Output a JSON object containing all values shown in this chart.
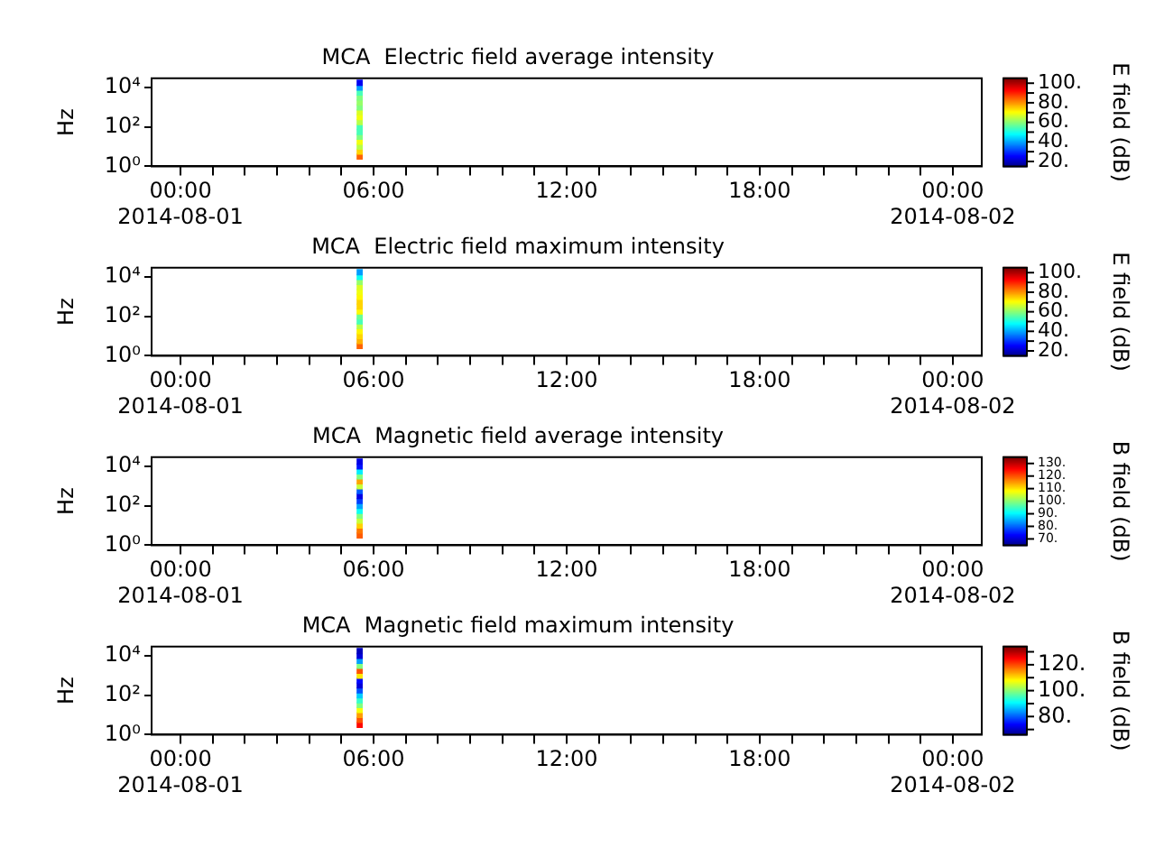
{
  "chart_data": [
    {
      "type": "scatter",
      "title": "MCA  Electric field average intensity",
      "ylabel": "Hz",
      "clabel": "E field (dB)",
      "marker": "square",
      "log": "y",
      "x": [
        "2014-08-01T05:34",
        "2014-08-01T05:34",
        "2014-08-01T05:34",
        "2014-08-01T05:34",
        "2014-08-01T05:34",
        "2014-08-01T05:34",
        "2014-08-01T05:34",
        "2014-08-01T05:34",
        "2014-08-01T05:34",
        "2014-08-01T05:34",
        "2014-08-01T05:34",
        "2014-08-01T05:34",
        "2014-08-01T05:34",
        "2014-08-01T05:34",
        "2014-08-01T05:34",
        "2014-08-01T05:34"
      ],
      "values": [
        3.16,
        5.62,
        10,
        17.8,
        31.6,
        56.2,
        100,
        178,
        316,
        562,
        1000,
        1780,
        3160,
        5620,
        10000,
        17800
      ],
      "cvalues": [
        85,
        75,
        65,
        70,
        60,
        55,
        55,
        65,
        70,
        68,
        60,
        62,
        60,
        55,
        40,
        25
      ],
      "clim": [
        15,
        105
      ],
      "cticks": [
        {
          "value": 20,
          "label": "20."
        },
        {
          "value": 30,
          "label": null
        },
        {
          "value": 40,
          "label": "40."
        },
        {
          "value": 50,
          "label": null
        },
        {
          "value": 60,
          "label": "60."
        },
        {
          "value": 70,
          "label": null
        },
        {
          "value": 80,
          "label": "80."
        },
        {
          "value": 90,
          "label": null
        },
        {
          "value": 100,
          "label": "100."
        }
      ],
      "xlim": [
        "2014-07-31T23:06",
        "2014-08-02T00:54"
      ],
      "xticks": [
        {
          "value": "2014-08-01T00:00",
          "label": "00:00\n2014-08-01"
        },
        {
          "value": "2014-08-01T01:00",
          "label": null
        },
        {
          "value": "2014-08-01T02:00",
          "label": null
        },
        {
          "value": "2014-08-01T03:00",
          "label": null
        },
        {
          "value": "2014-08-01T04:00",
          "label": null
        },
        {
          "value": "2014-08-01T05:00",
          "label": null
        },
        {
          "value": "2014-08-01T06:00",
          "label": "06:00"
        },
        {
          "value": "2014-08-01T07:00",
          "label": null
        },
        {
          "value": "2014-08-01T08:00",
          "label": null
        },
        {
          "value": "2014-08-01T09:00",
          "label": null
        },
        {
          "value": "2014-08-01T10:00",
          "label": null
        },
        {
          "value": "2014-08-01T11:00",
          "label": null
        },
        {
          "value": "2014-08-01T12:00",
          "label": "12:00"
        },
        {
          "value": "2014-08-01T13:00",
          "label": null
        },
        {
          "value": "2014-08-01T14:00",
          "label": null
        },
        {
          "value": "2014-08-01T15:00",
          "label": null
        },
        {
          "value": "2014-08-01T16:00",
          "label": null
        },
        {
          "value": "2014-08-01T17:00",
          "label": null
        },
        {
          "value": "2014-08-01T18:00",
          "label": "18:00"
        },
        {
          "value": "2014-08-01T19:00",
          "label": null
        },
        {
          "value": "2014-08-01T20:00",
          "label": null
        },
        {
          "value": "2014-08-01T21:00",
          "label": null
        },
        {
          "value": "2014-08-01T22:00",
          "label": null
        },
        {
          "value": "2014-08-01T23:00",
          "label": null
        },
        {
          "value": "2014-08-02T00:00",
          "label": "00:00\n2014-08-02"
        }
      ],
      "ylim": [
        1,
        30000
      ],
      "yticks": [
        {
          "value": 1,
          "label": "10⁰"
        },
        {
          "value": 100,
          "label": "10²"
        },
        {
          "value": 10000,
          "label": "10⁴"
        }
      ]
    },
    {
      "type": "scatter",
      "title": "MCA  Electric field maximum intensity",
      "ylabel": "Hz",
      "clabel": "E field (dB)",
      "marker": "square",
      "log": "y",
      "x": [
        "2014-08-01T05:34",
        "2014-08-01T05:34",
        "2014-08-01T05:34",
        "2014-08-01T05:34",
        "2014-08-01T05:34",
        "2014-08-01T05:34",
        "2014-08-01T05:34",
        "2014-08-01T05:34",
        "2014-08-01T05:34",
        "2014-08-01T05:34",
        "2014-08-01T05:34",
        "2014-08-01T05:34",
        "2014-08-01T05:34",
        "2014-08-01T05:34",
        "2014-08-01T05:34",
        "2014-08-01T05:34"
      ],
      "values": [
        3.16,
        5.62,
        10,
        17.8,
        31.6,
        56.2,
        100,
        178,
        316,
        562,
        1000,
        1780,
        3160,
        5620,
        10000,
        17800
      ],
      "cvalues": [
        85,
        78,
        75,
        72,
        65,
        55,
        58,
        72,
        75,
        75,
        72,
        70,
        68,
        62,
        50,
        40
      ],
      "clim": [
        15,
        105
      ],
      "cticks": [
        {
          "value": 20,
          "label": "20."
        },
        {
          "value": 30,
          "label": null
        },
        {
          "value": 40,
          "label": "40."
        },
        {
          "value": 50,
          "label": null
        },
        {
          "value": 60,
          "label": "60."
        },
        {
          "value": 70,
          "label": null
        },
        {
          "value": 80,
          "label": "80."
        },
        {
          "value": 90,
          "label": null
        },
        {
          "value": 100,
          "label": "100."
        }
      ],
      "xlim": [
        "2014-07-31T23:06",
        "2014-08-02T00:54"
      ],
      "xticks": [
        {
          "value": "2014-08-01T00:00",
          "label": "00:00\n2014-08-01"
        },
        {
          "value": "2014-08-01T01:00",
          "label": null
        },
        {
          "value": "2014-08-01T02:00",
          "label": null
        },
        {
          "value": "2014-08-01T03:00",
          "label": null
        },
        {
          "value": "2014-08-01T04:00",
          "label": null
        },
        {
          "value": "2014-08-01T05:00",
          "label": null
        },
        {
          "value": "2014-08-01T06:00",
          "label": "06:00"
        },
        {
          "value": "2014-08-01T07:00",
          "label": null
        },
        {
          "value": "2014-08-01T08:00",
          "label": null
        },
        {
          "value": "2014-08-01T09:00",
          "label": null
        },
        {
          "value": "2014-08-01T10:00",
          "label": null
        },
        {
          "value": "2014-08-01T11:00",
          "label": null
        },
        {
          "value": "2014-08-01T12:00",
          "label": "12:00"
        },
        {
          "value": "2014-08-01T13:00",
          "label": null
        },
        {
          "value": "2014-08-01T14:00",
          "label": null
        },
        {
          "value": "2014-08-01T15:00",
          "label": null
        },
        {
          "value": "2014-08-01T16:00",
          "label": null
        },
        {
          "value": "2014-08-01T17:00",
          "label": null
        },
        {
          "value": "2014-08-01T18:00",
          "label": "18:00"
        },
        {
          "value": "2014-08-01T19:00",
          "label": null
        },
        {
          "value": "2014-08-01T20:00",
          "label": null
        },
        {
          "value": "2014-08-01T21:00",
          "label": null
        },
        {
          "value": "2014-08-01T22:00",
          "label": null
        },
        {
          "value": "2014-08-01T23:00",
          "label": null
        },
        {
          "value": "2014-08-02T00:00",
          "label": "00:00\n2014-08-02"
        }
      ],
      "ylim": [
        1,
        30000
      ],
      "yticks": [
        {
          "value": 1,
          "label": "10⁰"
        },
        {
          "value": 100,
          "label": "10²"
        },
        {
          "value": 10000,
          "label": "10⁴"
        }
      ]
    },
    {
      "type": "scatter",
      "title": "MCA  Magnetic field average intensity",
      "ylabel": "Hz",
      "clabel": "B field (dB)",
      "marker": "square",
      "log": "y",
      "x": [
        "2014-08-01T05:34",
        "2014-08-01T05:34",
        "2014-08-01T05:34",
        "2014-08-01T05:34",
        "2014-08-01T05:34",
        "2014-08-01T05:34",
        "2014-08-01T05:34",
        "2014-08-01T05:34",
        "2014-08-01T05:34",
        "2014-08-01T05:34",
        "2014-08-01T05:34",
        "2014-08-01T05:34",
        "2014-08-01T05:34",
        "2014-08-01T05:34",
        "2014-08-01T05:34",
        "2014-08-01T05:34"
      ],
      "values": [
        3.16,
        5.62,
        10,
        17.8,
        31.6,
        56.2,
        100,
        178,
        316,
        562,
        1000,
        1780,
        3160,
        5620,
        10000,
        17800
      ],
      "cvalues": [
        120,
        118,
        112,
        105,
        100,
        92,
        85,
        78,
        72,
        80,
        105,
        115,
        100,
        90,
        75,
        72
      ],
      "clim": [
        65,
        135
      ],
      "cticks": [
        {
          "value": 70,
          "label": "70."
        },
        {
          "value": 80,
          "label": "80."
        },
        {
          "value": 90,
          "label": "90."
        },
        {
          "value": 100,
          "label": "100."
        },
        {
          "value": 110,
          "label": "110."
        },
        {
          "value": 120,
          "label": "120."
        },
        {
          "value": 130,
          "label": "130."
        }
      ],
      "xlim": [
        "2014-07-31T23:06",
        "2014-08-02T00:54"
      ],
      "xticks": [
        {
          "value": "2014-08-01T00:00",
          "label": "00:00\n2014-08-01"
        },
        {
          "value": "2014-08-01T01:00",
          "label": null
        },
        {
          "value": "2014-08-01T02:00",
          "label": null
        },
        {
          "value": "2014-08-01T03:00",
          "label": null
        },
        {
          "value": "2014-08-01T04:00",
          "label": null
        },
        {
          "value": "2014-08-01T05:00",
          "label": null
        },
        {
          "value": "2014-08-01T06:00",
          "label": "06:00"
        },
        {
          "value": "2014-08-01T07:00",
          "label": null
        },
        {
          "value": "2014-08-01T08:00",
          "label": null
        },
        {
          "value": "2014-08-01T09:00",
          "label": null
        },
        {
          "value": "2014-08-01T10:00",
          "label": null
        },
        {
          "value": "2014-08-01T11:00",
          "label": null
        },
        {
          "value": "2014-08-01T12:00",
          "label": "12:00"
        },
        {
          "value": "2014-08-01T13:00",
          "label": null
        },
        {
          "value": "2014-08-01T14:00",
          "label": null
        },
        {
          "value": "2014-08-01T15:00",
          "label": null
        },
        {
          "value": "2014-08-01T16:00",
          "label": null
        },
        {
          "value": "2014-08-01T17:00",
          "label": null
        },
        {
          "value": "2014-08-01T18:00",
          "label": "18:00"
        },
        {
          "value": "2014-08-01T19:00",
          "label": null
        },
        {
          "value": "2014-08-01T20:00",
          "label": null
        },
        {
          "value": "2014-08-01T21:00",
          "label": null
        },
        {
          "value": "2014-08-01T22:00",
          "label": null
        },
        {
          "value": "2014-08-01T23:00",
          "label": null
        },
        {
          "value": "2014-08-02T00:00",
          "label": "00:00\n2014-08-02"
        }
      ],
      "ylim": [
        1,
        30000
      ],
      "yticks": [
        {
          "value": 1,
          "label": "10⁰"
        },
        {
          "value": 100,
          "label": "10²"
        },
        {
          "value": 10000,
          "label": "10⁴"
        }
      ]
    },
    {
      "type": "scatter",
      "title": "MCA  Magnetic field maximum intensity",
      "ylabel": "Hz",
      "clabel": "B field (dB)",
      "marker": "square",
      "log": "y",
      "x": [
        "2014-08-01T05:34",
        "2014-08-01T05:34",
        "2014-08-01T05:34",
        "2014-08-01T05:34",
        "2014-08-01T05:34",
        "2014-08-01T05:34",
        "2014-08-01T05:34",
        "2014-08-01T05:34",
        "2014-08-01T05:34",
        "2014-08-01T05:34",
        "2014-08-01T05:34",
        "2014-08-01T05:34",
        "2014-08-01T05:34",
        "2014-08-01T05:34",
        "2014-08-01T05:34",
        "2014-08-01T05:34"
      ],
      "values": [
        3.16,
        5.62,
        10,
        17.8,
        31.6,
        56.2,
        100,
        178,
        316,
        562,
        1000,
        1780,
        3160,
        5620,
        10000,
        17800
      ],
      "cvalues": [
        125,
        120,
        115,
        108,
        100,
        95,
        88,
        80,
        72,
        75,
        110,
        120,
        100,
        85,
        72,
        70
      ],
      "clim": [
        66,
        134
      ],
      "cticks": [
        {
          "value": 70,
          "label": null
        },
        {
          "value": 80,
          "label": "80."
        },
        {
          "value": 90,
          "label": null
        },
        {
          "value": 100,
          "label": "100."
        },
        {
          "value": 110,
          "label": null
        },
        {
          "value": 120,
          "label": "120."
        },
        {
          "value": 130,
          "label": null
        }
      ],
      "xlim": [
        "2014-07-31T23:06",
        "2014-08-02T00:54"
      ],
      "xticks": [
        {
          "value": "2014-08-01T00:00",
          "label": "00:00\n2014-08-01"
        },
        {
          "value": "2014-08-01T01:00",
          "label": null
        },
        {
          "value": "2014-08-01T02:00",
          "label": null
        },
        {
          "value": "2014-08-01T03:00",
          "label": null
        },
        {
          "value": "2014-08-01T04:00",
          "label": null
        },
        {
          "value": "2014-08-01T05:00",
          "label": null
        },
        {
          "value": "2014-08-01T06:00",
          "label": "06:00"
        },
        {
          "value": "2014-08-01T07:00",
          "label": null
        },
        {
          "value": "2014-08-01T08:00",
          "label": null
        },
        {
          "value": "2014-08-01T09:00",
          "label": null
        },
        {
          "value": "2014-08-01T10:00",
          "label": null
        },
        {
          "value": "2014-08-01T11:00",
          "label": null
        },
        {
          "value": "2014-08-01T12:00",
          "label": "12:00"
        },
        {
          "value": "2014-08-01T13:00",
          "label": null
        },
        {
          "value": "2014-08-01T14:00",
          "label": null
        },
        {
          "value": "2014-08-01T15:00",
          "label": null
        },
        {
          "value": "2014-08-01T16:00",
          "label": null
        },
        {
          "value": "2014-08-01T17:00",
          "label": null
        },
        {
          "value": "2014-08-01T18:00",
          "label": "18:00"
        },
        {
          "value": "2014-08-01T19:00",
          "label": null
        },
        {
          "value": "2014-08-01T20:00",
          "label": null
        },
        {
          "value": "2014-08-01T21:00",
          "label": null
        },
        {
          "value": "2014-08-01T22:00",
          "label": null
        },
        {
          "value": "2014-08-01T23:00",
          "label": null
        },
        {
          "value": "2014-08-02T00:00",
          "label": "00:00\n2014-08-02"
        }
      ],
      "ylim": [
        1,
        30000
      ],
      "yticks": [
        {
          "value": 1,
          "label": "10⁰"
        },
        {
          "value": 100,
          "label": "10²"
        },
        {
          "value": 10000,
          "label": "10⁴"
        }
      ]
    }
  ]
}
